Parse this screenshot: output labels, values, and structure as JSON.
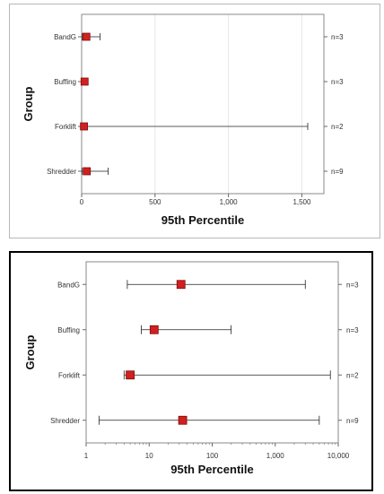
{
  "chart_data": [
    {
      "type": "interval",
      "xscale": "linear",
      "xlim": [
        0,
        1650
      ],
      "xlabel": "95th Percentile",
      "ylabel": "Group",
      "grid": true,
      "x_ticks": [
        0,
        500,
        1000,
        1500
      ],
      "x_tick_labels": [
        "0",
        "500",
        "1,000",
        "1,500"
      ],
      "categories": [
        "BandG",
        "Buffing",
        "Forklift",
        "Shredder"
      ],
      "counts": [
        "n=3",
        "n=3",
        "n=2",
        "n=9"
      ],
      "estimate": [
        32,
        20,
        16,
        35
      ],
      "lower": [
        5,
        7,
        5,
        2
      ],
      "upper": [
        125,
        20,
        1540,
        180
      ],
      "marker_color": "#d21f1f"
    },
    {
      "type": "interval",
      "xscale": "log",
      "xlim": [
        1,
        10000
      ],
      "xlabel": "95th Percentile",
      "ylabel": "Group",
      "grid": false,
      "x_ticks": [
        1,
        10,
        100,
        1000,
        10000
      ],
      "x_tick_labels": [
        "1",
        "10",
        "100",
        "1,000",
        "10,000"
      ],
      "categories": [
        "BandG",
        "Buffing",
        "Forklift",
        "Shredder"
      ],
      "counts": [
        "n=3",
        "n=3",
        "n=2",
        "n=9"
      ],
      "estimate": [
        32,
        12,
        5,
        34
      ],
      "lower": [
        4.5,
        7.5,
        4,
        1.6
      ],
      "upper": [
        3000,
        200,
        7500,
        5000
      ],
      "marker_color": "#d21f1f"
    }
  ]
}
